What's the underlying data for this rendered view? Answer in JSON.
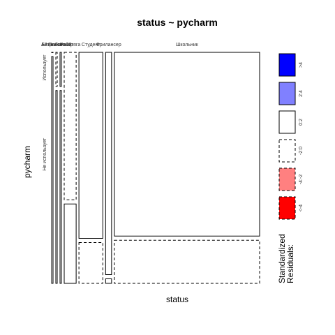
{
  "chart_data": {
    "type": "mosaic",
    "title": "status ~ pycharm",
    "xlabel": "status",
    "ylabel": "pycharm",
    "x_categories": [
      "Айтишник",
      "Безработный",
      "Пенсионер",
      "Работяга",
      "Студент",
      "Фрилансер",
      "Школьник"
    ],
    "y_categories": [
      "Использует",
      "Не использует"
    ],
    "columns": [
      {
        "status": "Айтишник",
        "share": 0.004,
        "uses": 0.0,
        "not_uses": 1.0,
        "residual_uses": "0:2",
        "residual_not_uses": "0:2"
      },
      {
        "status": "Безработный",
        "share": 0.005,
        "uses": 0.15,
        "not_uses": 0.85,
        "residual_uses": "-2:0",
        "residual_not_uses": "0:2"
      },
      {
        "status": "Пенсионер",
        "share": 0.005,
        "uses": 0.15,
        "not_uses": 0.85,
        "residual_uses": "0:2",
        "residual_not_uses": "0:2"
      },
      {
        "status": "Работяга",
        "share": 0.06,
        "uses": 0.65,
        "not_uses": 0.35,
        "residual_uses": "-2:0",
        "residual_not_uses": "0:2"
      },
      {
        "status": "Студент",
        "share": 0.12,
        "uses": 0.82,
        "not_uses": 0.18,
        "residual_uses": "0:2",
        "residual_not_uses": "-2:0"
      },
      {
        "status": "Фрилансер",
        "share": 0.03,
        "uses": 0.98,
        "not_uses": 0.02,
        "residual_uses": "0:2",
        "residual_not_uses": "0:2"
      },
      {
        "status": "Школьник",
        "share": 0.73,
        "uses": 0.81,
        "not_uses": 0.19,
        "residual_uses": "0:2",
        "residual_not_uses": "-2:0"
      }
    ],
    "legend": {
      "title_lines": [
        "Standardized",
        "Residuals:"
      ],
      "entries": [
        {
          "label": ">4",
          "fill": "#0000ff",
          "dashed": false
        },
        {
          "label": "2:4",
          "fill": "#8080ff",
          "dashed": false
        },
        {
          "label": "0:2",
          "fill": "#ffffff",
          "dashed": false
        },
        {
          "label": "-2:0",
          "fill": "#ffffff",
          "dashed": true
        },
        {
          "label": "-4:-2",
          "fill": "#ff8080",
          "dashed": true
        },
        {
          "label": "<-4",
          "fill": "#ff0000",
          "dashed": true
        }
      ]
    }
  }
}
